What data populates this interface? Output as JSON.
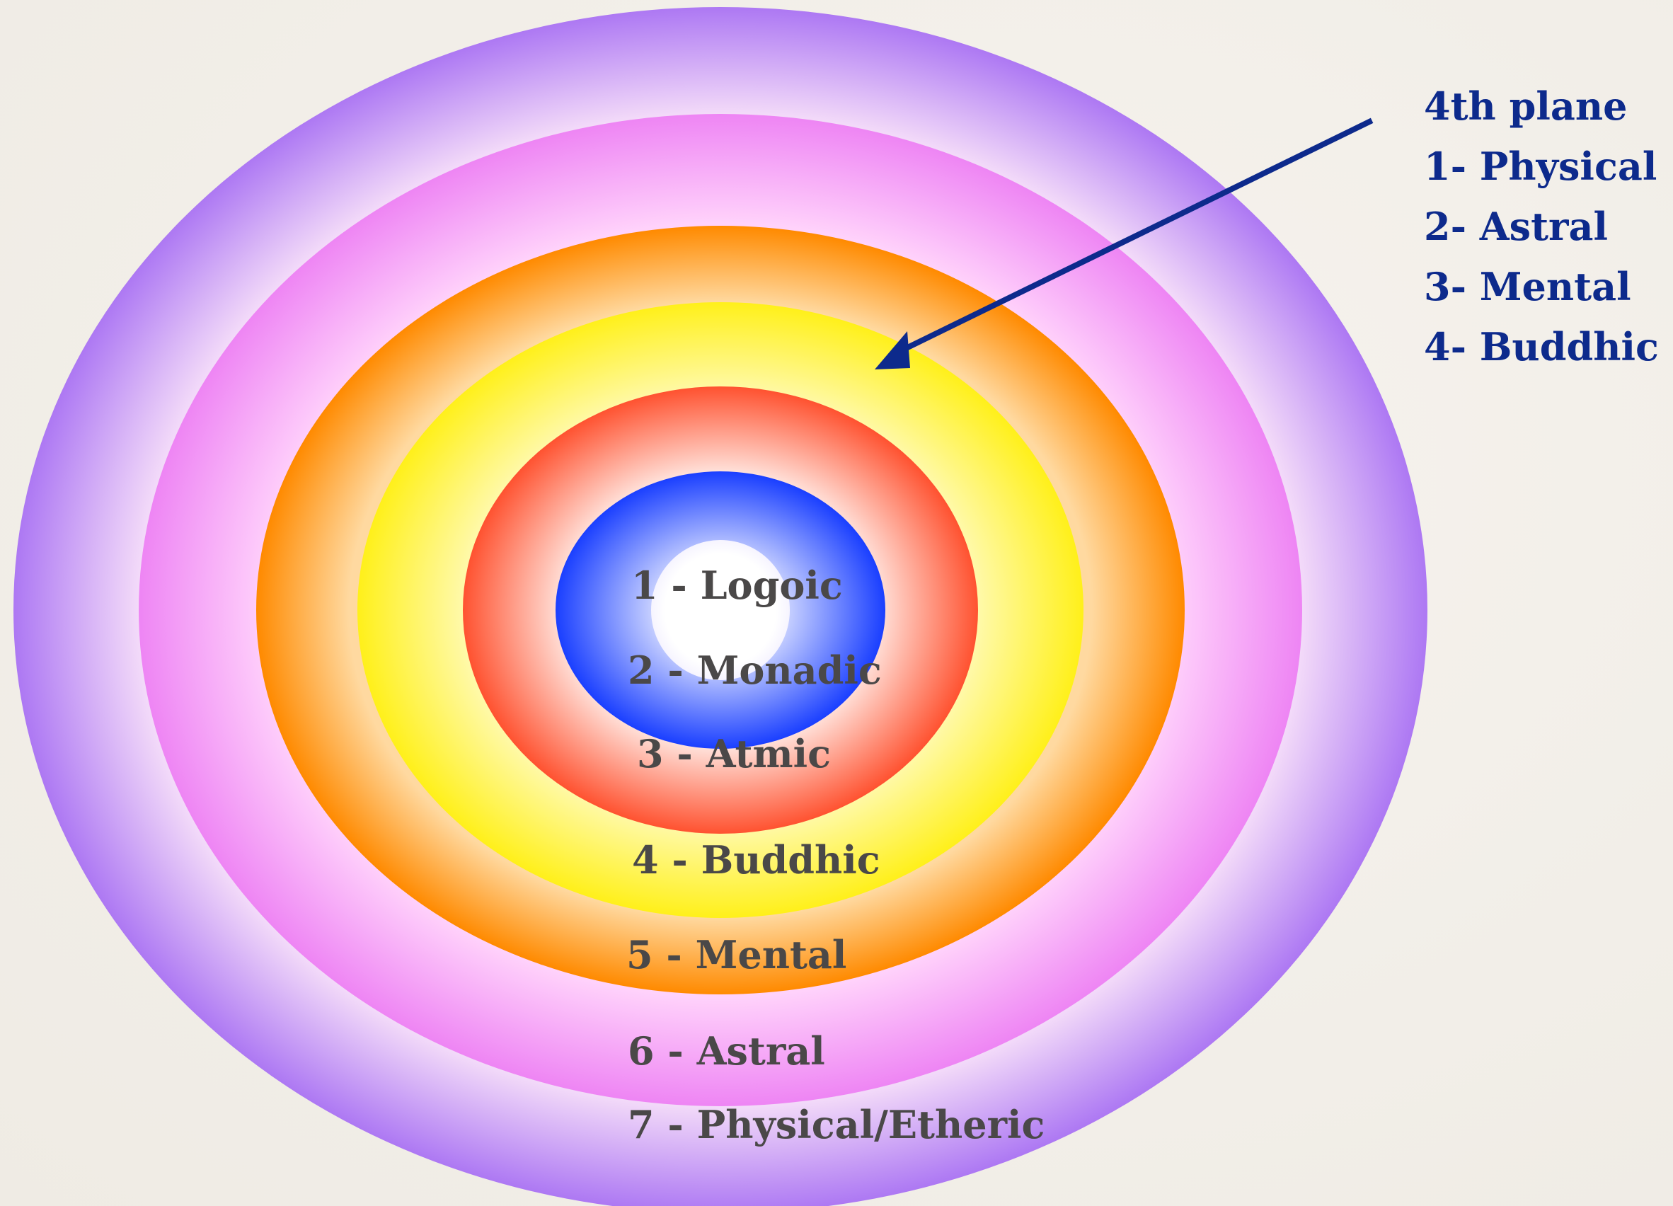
{
  "rings": [
    {
      "label": "1 - Logoic",
      "color": "#ffffff"
    },
    {
      "label": "2 - Monadic",
      "color": "#1a44ff"
    },
    {
      "label": "3 - Atmic",
      "color": "#ff5533"
    },
    {
      "label": "4 - Buddhic",
      "color": "#fff01a"
    },
    {
      "label": "5 - Mental",
      "color": "#ff8c00"
    },
    {
      "label": "6 - Astral",
      "color": "#ee88f5"
    },
    {
      "label": "7 - Physical/Etheric",
      "color": "#b07cf5"
    }
  ],
  "callout": {
    "title": "4th plane",
    "items": [
      "1- Physical",
      "2- Astral",
      "3- Mental",
      "4- Buddhic"
    ],
    "color": "#0d2a8c"
  }
}
